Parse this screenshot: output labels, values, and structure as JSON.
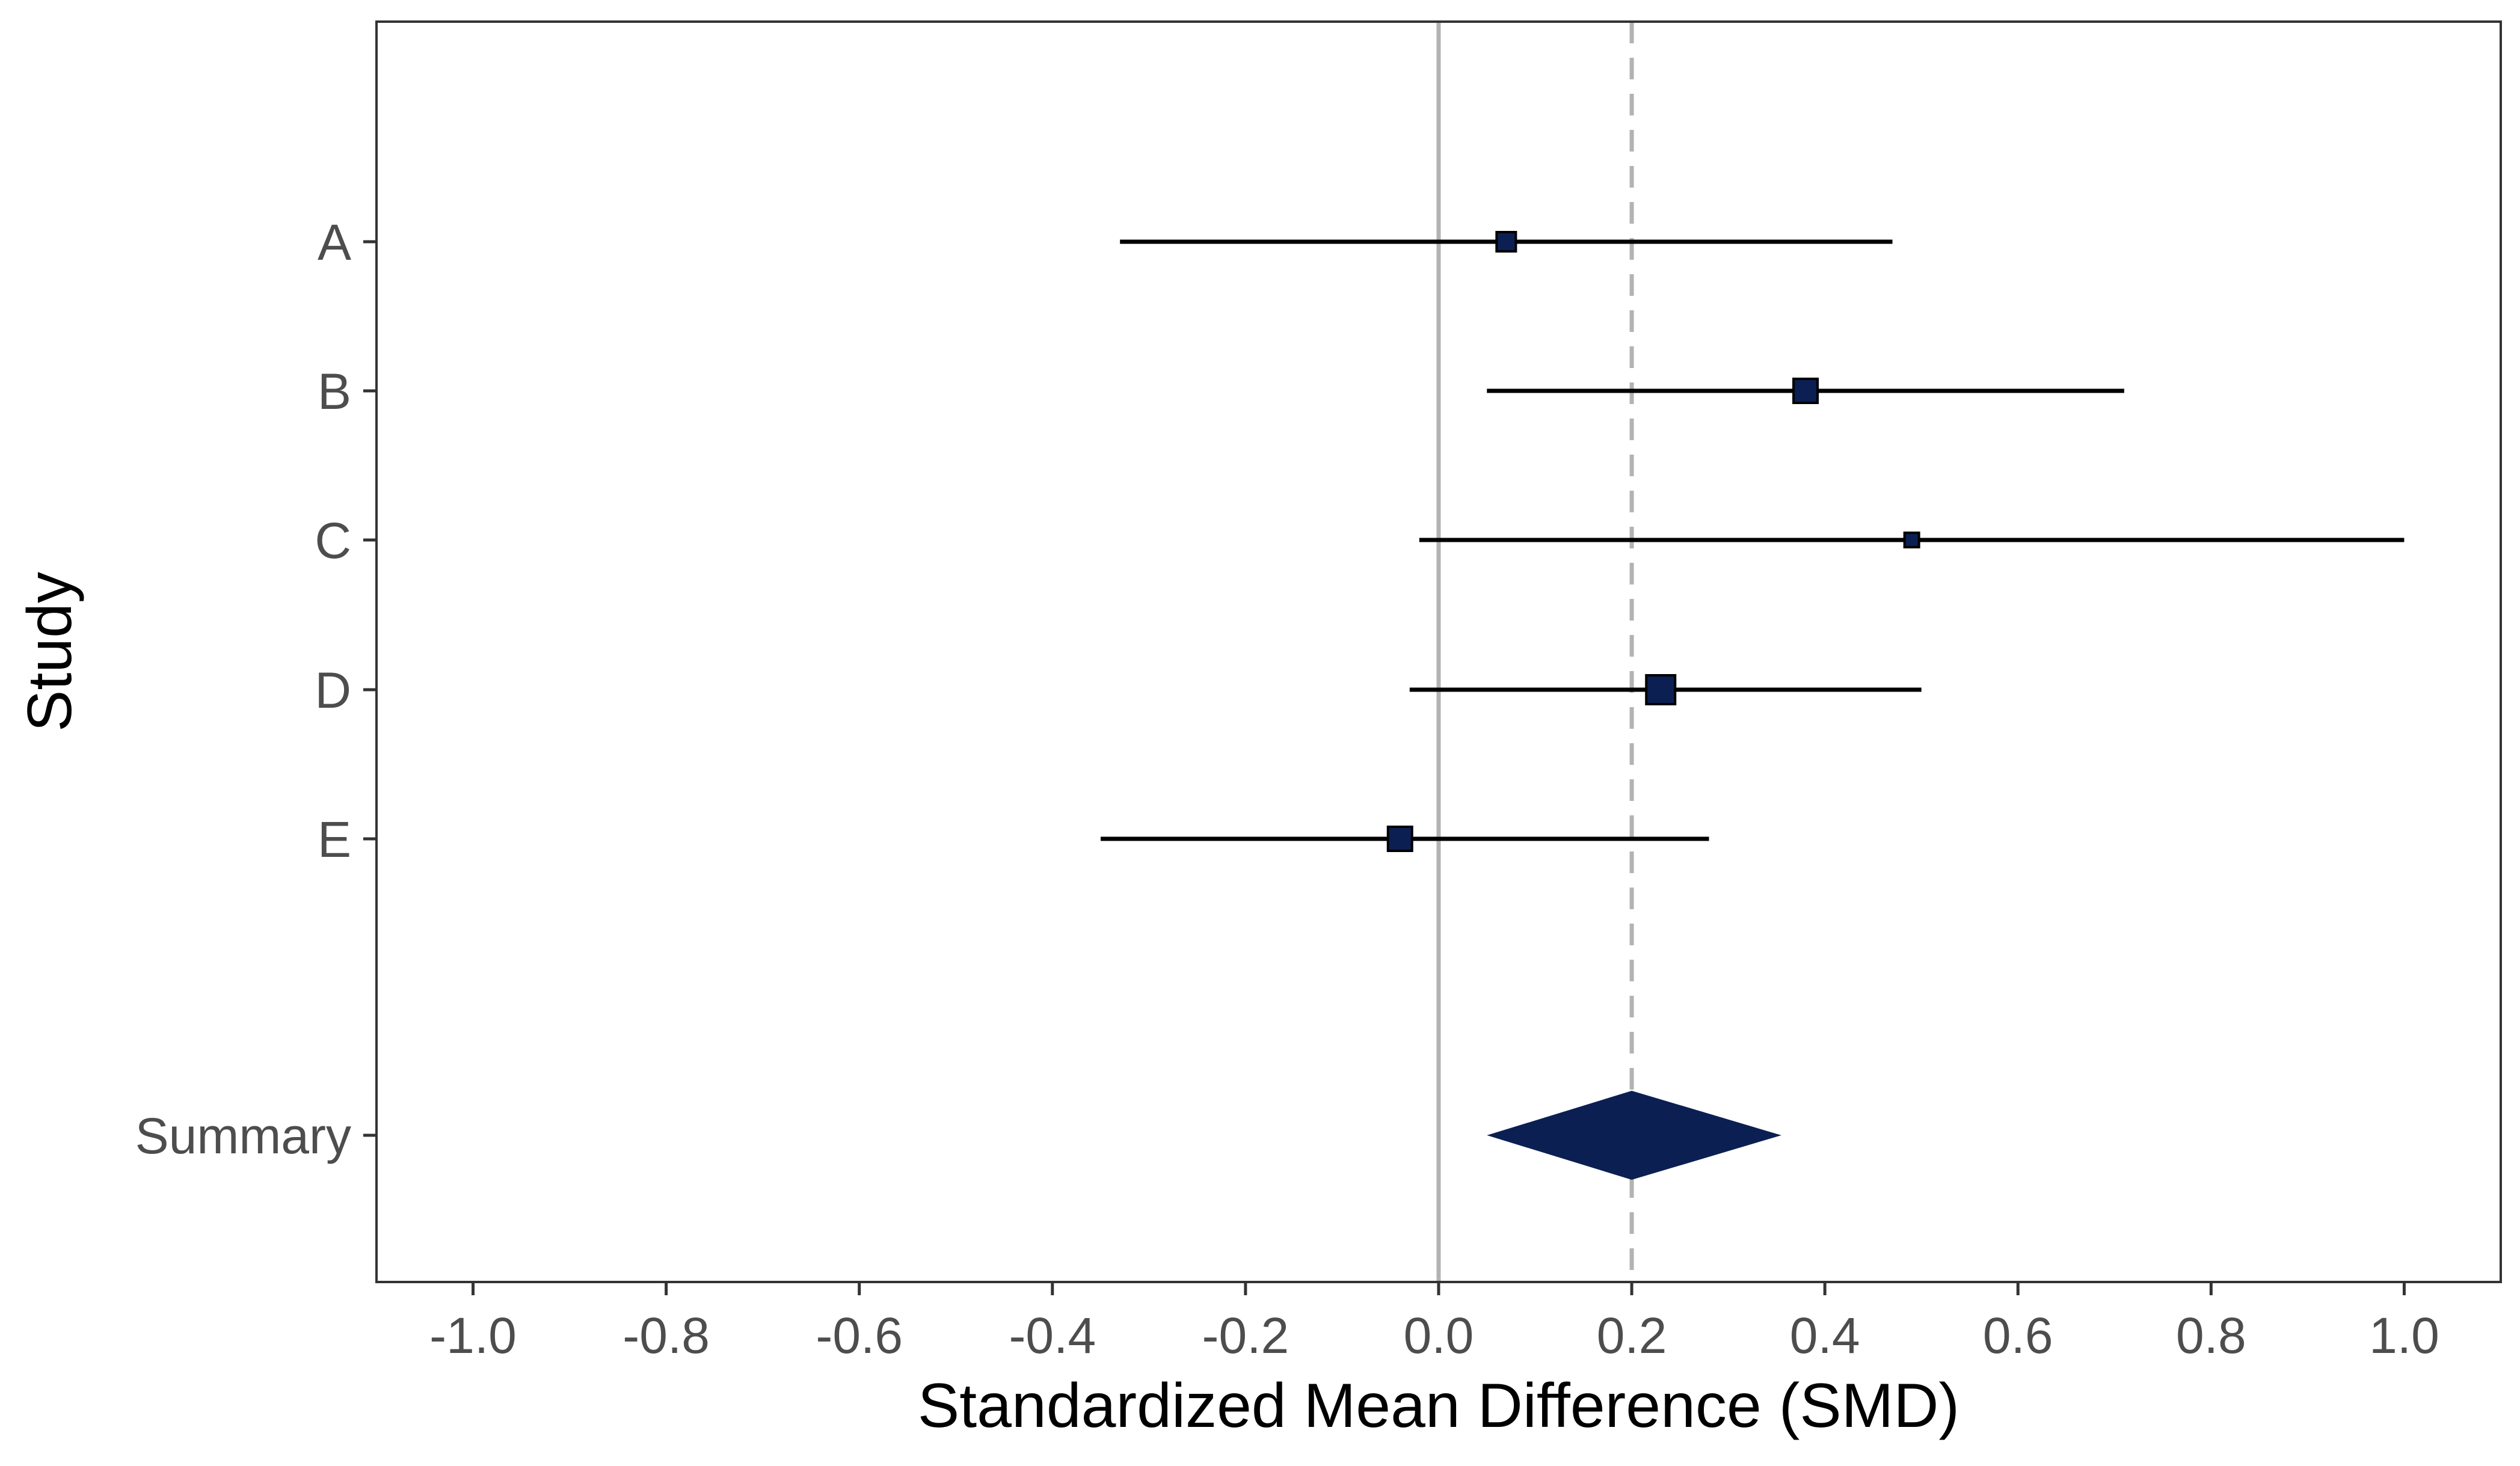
{
  "chart_data": {
    "type": "forest",
    "xlabel": "Standardized Mean Difference (SMD)",
    "ylabel": "Study",
    "xlim": [
      -1.1,
      1.1
    ],
    "x_ticks": [
      -1.0,
      -0.8,
      -0.6,
      -0.4,
      -0.2,
      0.0,
      0.2,
      0.4,
      0.6,
      0.8,
      1.0
    ],
    "x_tick_labels": [
      "-1.0",
      "-0.8",
      "-0.6",
      "-0.4",
      "-0.2",
      "0.0",
      "0.2",
      "0.4",
      "0.6",
      "0.8",
      "1.0"
    ],
    "reference_lines": [
      {
        "value": 0.0,
        "style": "solid",
        "color": "#b3b3b3"
      },
      {
        "value": 0.2,
        "style": "dashed",
        "color": "#b3b3b3"
      }
    ],
    "studies": [
      {
        "label": "A",
        "estimate": 0.07,
        "lower": -0.33,
        "upper": 0.47,
        "weight": 0.8
      },
      {
        "label": "B",
        "estimate": 0.38,
        "lower": 0.05,
        "upper": 0.71,
        "weight": 1.0
      },
      {
        "label": "C",
        "estimate": 0.49,
        "lower": -0.02,
        "upper": 1.0,
        "weight": 0.6
      },
      {
        "label": "D",
        "estimate": 0.23,
        "lower": -0.03,
        "upper": 0.5,
        "weight": 1.2
      },
      {
        "label": "E",
        "estimate": -0.04,
        "lower": -0.35,
        "upper": 0.28,
        "weight": 1.0
      }
    ],
    "summary": {
      "label": "Summary",
      "estimate": 0.2,
      "lower": 0.05,
      "upper": 0.355
    },
    "grid": false,
    "colors": {
      "point": "#0b1f52",
      "diamond": "#0b1f52",
      "ci_line": "#000000",
      "frame": "#333333"
    }
  }
}
